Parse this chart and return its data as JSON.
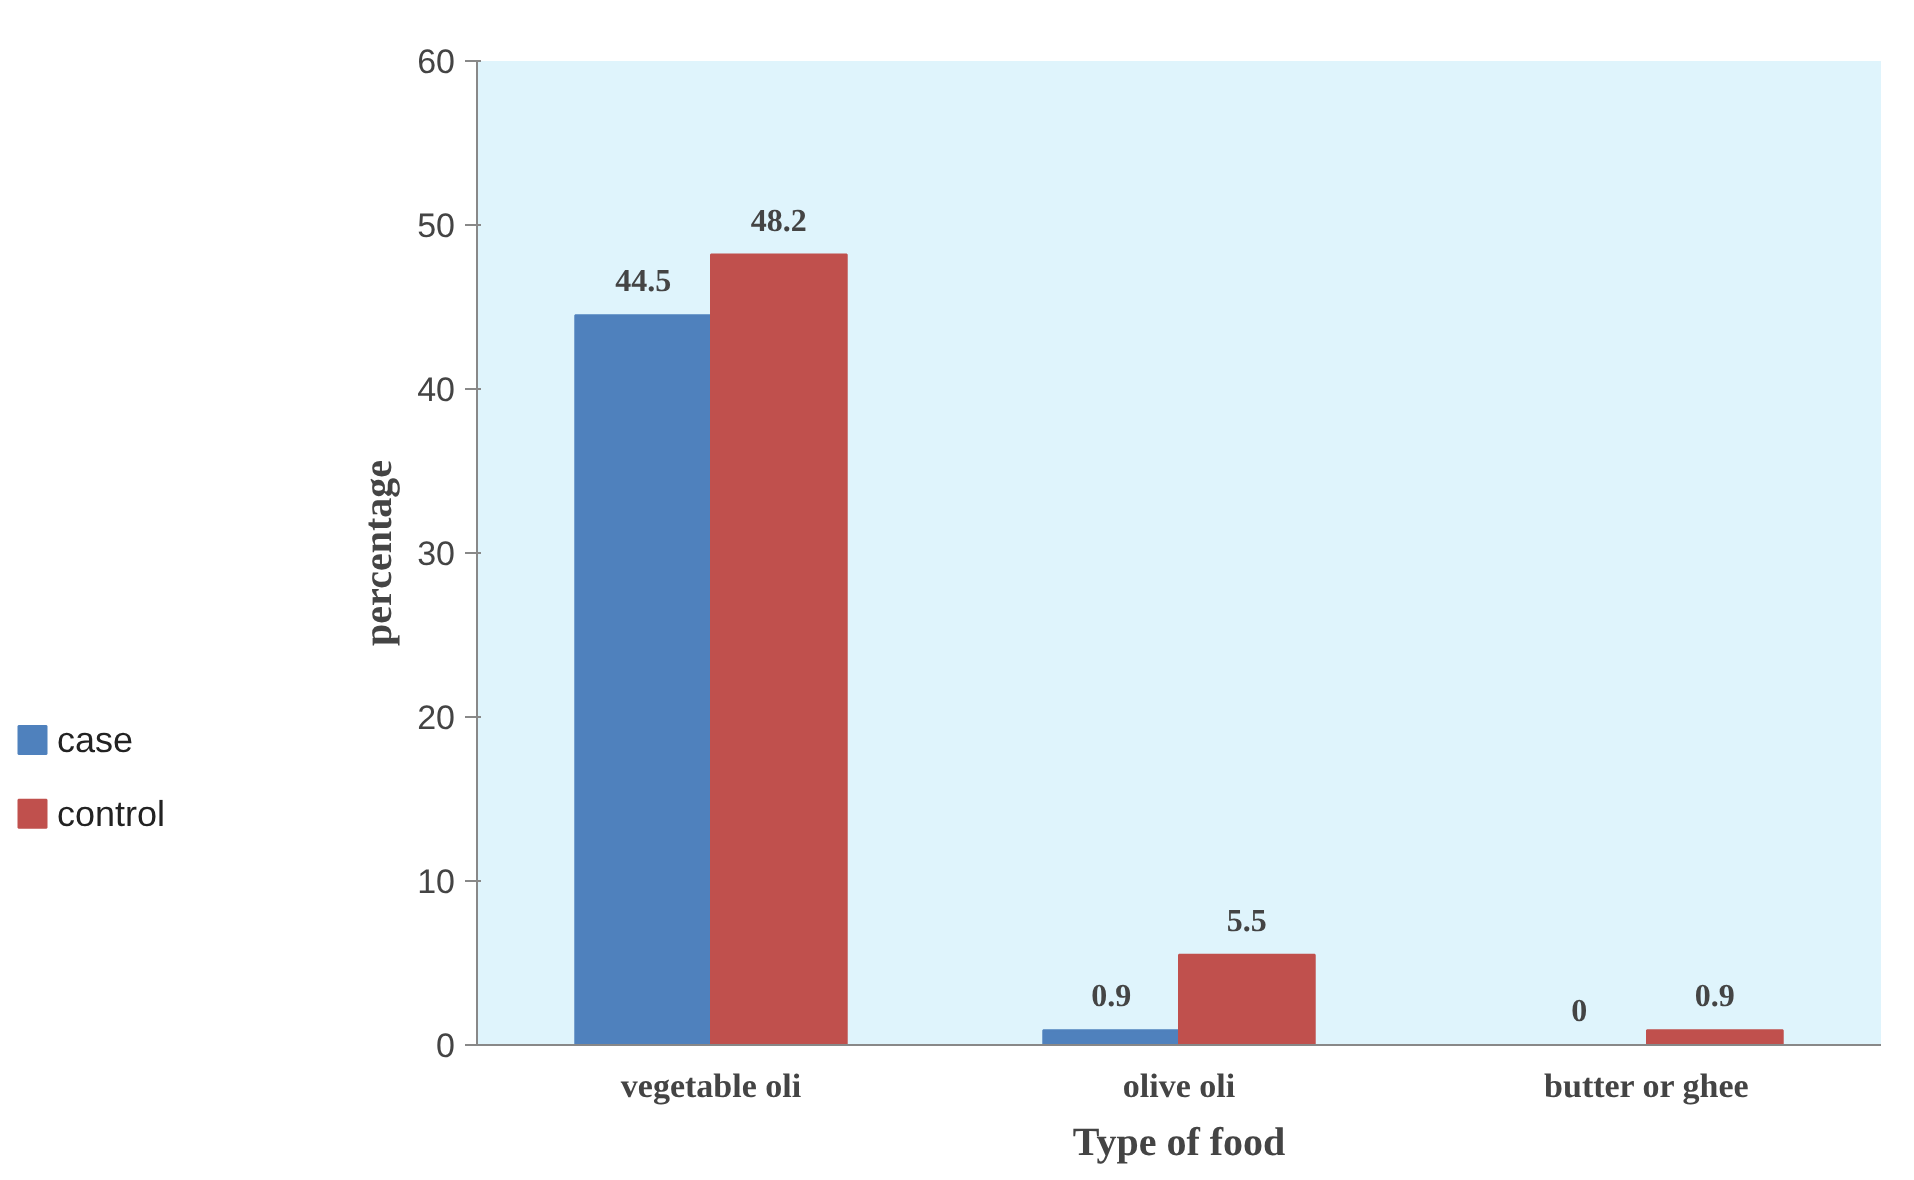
{
  "chart_data": {
    "type": "bar",
    "xlabel": "Type of food",
    "ylabel": "percentage",
    "categories": [
      "vegetable oli",
      "olive oli",
      "butter or ghee"
    ],
    "series": [
      {
        "name": "case",
        "color": "#4f81bd",
        "values": [
          44.5,
          0.9,
          0
        ]
      },
      {
        "name": "control",
        "color": "#c0504d",
        "values": [
          48.2,
          5.5,
          0.9
        ]
      }
    ],
    "ylim": [
      0,
      60
    ],
    "yticks": [
      0,
      10,
      20,
      30,
      40,
      50,
      60
    ],
    "data_labels": true,
    "grid": false,
    "legend": "left"
  }
}
